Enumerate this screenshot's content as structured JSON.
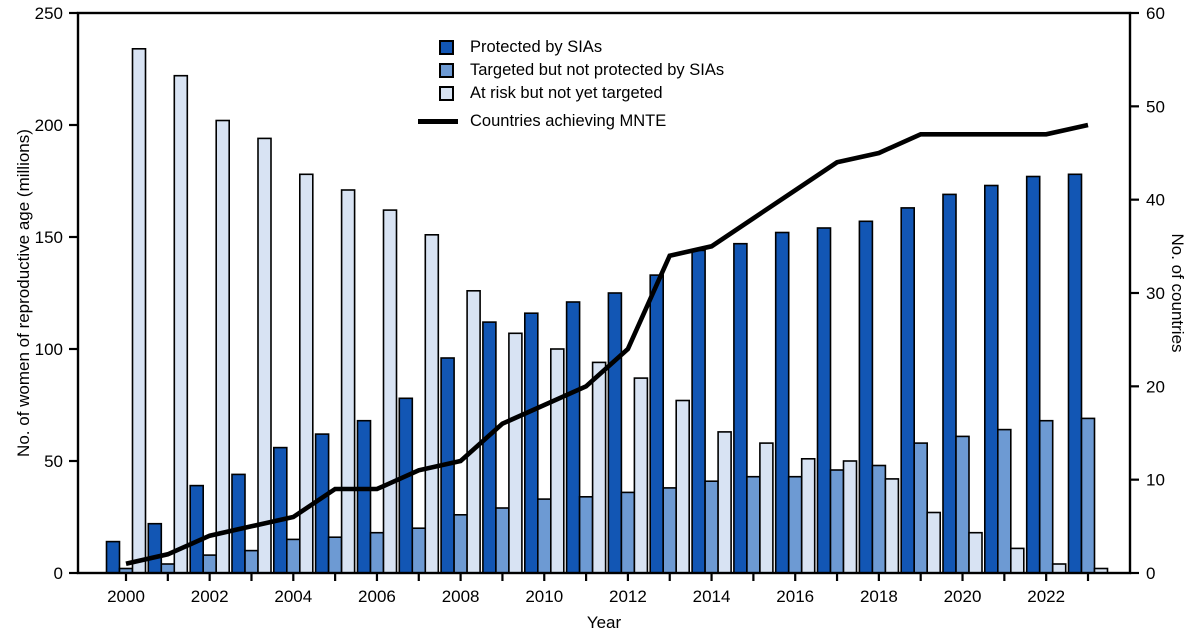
{
  "figure": {
    "background": "#ffffff",
    "frame_color": "#000000",
    "text_color": "#000000"
  },
  "axes": {
    "left": {
      "title": "No. of women of reproductive age (millions)",
      "ticks": [
        0,
        50,
        100,
        150,
        200,
        250
      ],
      "range": [
        0,
        250
      ]
    },
    "right": {
      "title": "No. of countries",
      "ticks": [
        0,
        10,
        20,
        30,
        40,
        50,
        60
      ],
      "range": [
        0,
        60
      ]
    },
    "x": {
      "title": "Year",
      "tick_labels": [
        "2000",
        "2002",
        "2004",
        "2006",
        "2008",
        "2010",
        "2012",
        "2014",
        "2016",
        "2018",
        "2020",
        "2022"
      ],
      "range": [
        2000,
        2023
      ]
    }
  },
  "legend": {
    "items": [
      {
        "label": "Protected by SIAs",
        "marker": "square",
        "color": "#1256B4"
      },
      {
        "label": "Targeted but not protected by SIAs",
        "marker": "square",
        "color": "#6D9AD3"
      },
      {
        "label": "At risk but not yet targeted",
        "marker": "square",
        "color": "#D8E3F3"
      },
      {
        "label": "Countries achieving MNTE",
        "marker": "line",
        "color": "#000000"
      }
    ]
  },
  "chart_data": {
    "type": "bar",
    "subtype": "grouped-bars-with-line-overlay",
    "x": [
      2000,
      2001,
      2002,
      2003,
      2004,
      2005,
      2006,
      2007,
      2008,
      2009,
      2010,
      2011,
      2012,
      2013,
      2014,
      2015,
      2016,
      2017,
      2018,
      2019,
      2020,
      2021,
      2022,
      2023
    ],
    "xlabel": "Year",
    "ylabel_left": "No. of women of reproductive age (millions)",
    "ylabel_right": "No. of countries",
    "ylim_left": [
      0,
      250
    ],
    "ylim_right": [
      0,
      60
    ],
    "grid": false,
    "legend_position": "top-center-inside",
    "series": [
      {
        "name": "Protected by SIAs",
        "type": "bar",
        "axis": "left",
        "color": "#1256B4",
        "values": [
          14,
          22,
          39,
          44,
          56,
          62,
          68,
          78,
          96,
          112,
          116,
          121,
          125,
          133,
          144,
          147,
          152,
          154,
          157,
          163,
          169,
          173,
          177,
          178
        ]
      },
      {
        "name": "Targeted but not protected by SIAs",
        "type": "bar",
        "axis": "left",
        "color": "#6D9AD3",
        "values": [
          2,
          4,
          8,
          10,
          15,
          16,
          18,
          20,
          26,
          29,
          33,
          34,
          36,
          38,
          41,
          43,
          43,
          46,
          48,
          58,
          61,
          64,
          68,
          69
        ]
      },
      {
        "name": "At risk but not yet targeted",
        "type": "bar",
        "axis": "left",
        "color": "#D8E3F3",
        "values": [
          234,
          222,
          202,
          194,
          178,
          171,
          162,
          151,
          126,
          107,
          100,
          94,
          87,
          77,
          63,
          58,
          51,
          50,
          42,
          27,
          18,
          11,
          4,
          2
        ]
      },
      {
        "name": "Countries achieving MNTE",
        "type": "line",
        "axis": "right",
        "color": "#000000",
        "values": [
          1,
          2,
          4,
          5,
          6,
          9,
          9,
          11,
          12,
          16,
          18,
          20,
          24,
          34,
          35,
          38,
          41,
          44,
          45,
          47,
          47,
          47,
          47,
          48
        ]
      }
    ]
  }
}
